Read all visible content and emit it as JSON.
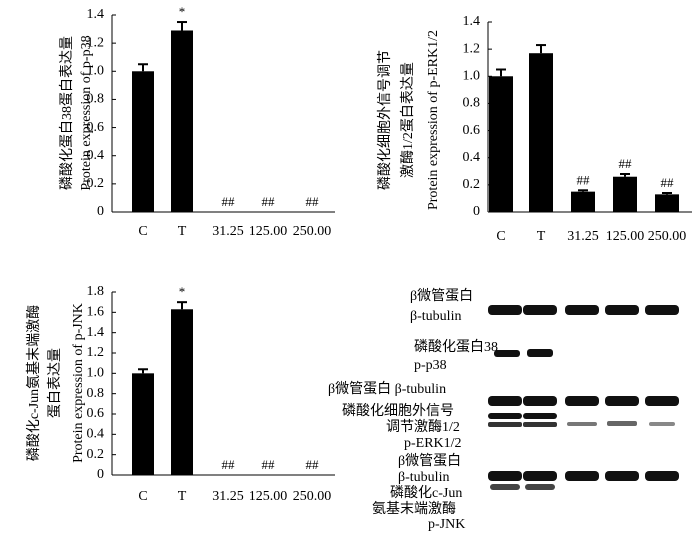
{
  "chart_data": [
    {
      "type": "bar",
      "ylabel": [
        "磷酸化蛋白38蛋白表达量",
        "Protein expression of p-p38"
      ],
      "categories": [
        "C",
        "T",
        "31.25",
        "125.00",
        "250.00"
      ],
      "values": [
        1.0,
        1.29,
        0,
        0,
        0
      ],
      "errors": [
        0.05,
        0.06,
        null,
        null,
        null
      ],
      "annotations": [
        null,
        "*",
        "##",
        "##",
        "##"
      ],
      "color": "#000000",
      "ylim": [
        0,
        1.4
      ],
      "yticks": [
        0,
        0.2,
        0.4,
        0.6,
        0.8,
        {
          "value": 1,
          "label": "1.0"
        },
        1.2,
        1.4
      ]
    },
    {
      "type": "bar",
      "ylabel": [
        "磷酸化细胞外信号调节",
        "激酶1/2蛋白表达量",
        "Protein expression of p-ERK1/2"
      ],
      "categories": [
        "C",
        "T",
        "31.25",
        "125.00",
        "250.00"
      ],
      "values": [
        1.0,
        1.17,
        0.15,
        0.26,
        0.13
      ],
      "errors": [
        0.05,
        0.06,
        0.01,
        0.02,
        0.01
      ],
      "annotations": [
        null,
        null,
        "##",
        "##",
        "##"
      ],
      "color": "#000000",
      "ylim": [
        0,
        1.4
      ],
      "yticks": [
        0,
        0.2,
        0.4,
        0.6,
        0.8,
        {
          "value": 1,
          "label": "1.0"
        },
        1.2,
        1.4
      ]
    },
    {
      "type": "bar",
      "ylabel": [
        "磷酸化c-Jun氨基末端激酶",
        "蛋白表达量",
        "Protein expression of p-JNK"
      ],
      "categories": [
        "C",
        "T",
        "31.25",
        "125.00",
        "250.00"
      ],
      "values": [
        1.0,
        1.63,
        0,
        0,
        0
      ],
      "errors": [
        0.04,
        0.07,
        null,
        null,
        null
      ],
      "annotations": [
        null,
        "*",
        "##",
        "##",
        "##"
      ],
      "color": "#000000",
      "ylim": [
        0,
        1.8
      ],
      "yticks": [
        0,
        0.2,
        0.4,
        0.6,
        0.8,
        {
          "value": 1,
          "label": "1.0"
        },
        1.2,
        1.4,
        1.6,
        1.8
      ]
    }
  ],
  "blot": {
    "labels": [
      "β微管蛋白",
      "β-tubulin",
      "磷酸化蛋白38",
      "p-p38",
      "β微管蛋白 β-tubulin",
      "磷酸化细胞外信号",
      "调节激酶1/2",
      "p-ERK1/2",
      "β微管蛋白",
      "β-tubulin",
      "磷酸化c-Jun",
      "氨基末端激酶",
      "p-JNK"
    ]
  }
}
